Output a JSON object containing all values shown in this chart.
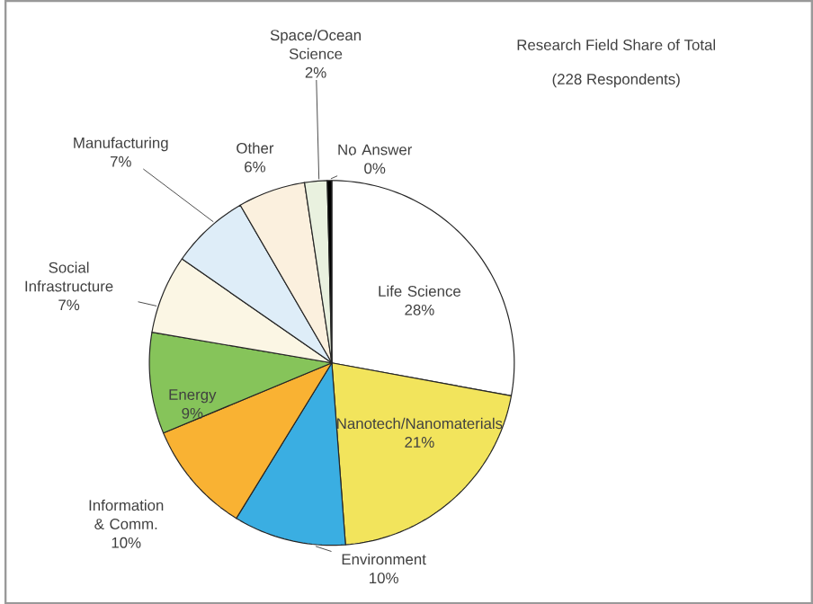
{
  "chart_data": {
    "type": "pie",
    "title": "Research Field Share of Total",
    "subtitle": "(228 Respondents)",
    "categories": [
      "Life Science",
      "Nanotech/Nanomaterials",
      "Environment",
      "Information & Comm.",
      "Energy",
      "Social Infrastructure",
      "Manufacturing",
      "Other",
      "Space/Ocean Science",
      "No Answer"
    ],
    "values": [
      28,
      21,
      10,
      10,
      9,
      7,
      7,
      6,
      2,
      0.4
    ],
    "value_labels": [
      "28%",
      "21%",
      "10%",
      "10%",
      "9%",
      "7%",
      "7%",
      "6%",
      "2%",
      "0%"
    ],
    "colors": [
      "#ffffff",
      "#f2e45c",
      "#3aaee2",
      "#f9b233",
      "#86c45a",
      "#fbf6e4",
      "#deedf8",
      "#fbf0de",
      "#e9f1df",
      "#000000"
    ]
  }
}
